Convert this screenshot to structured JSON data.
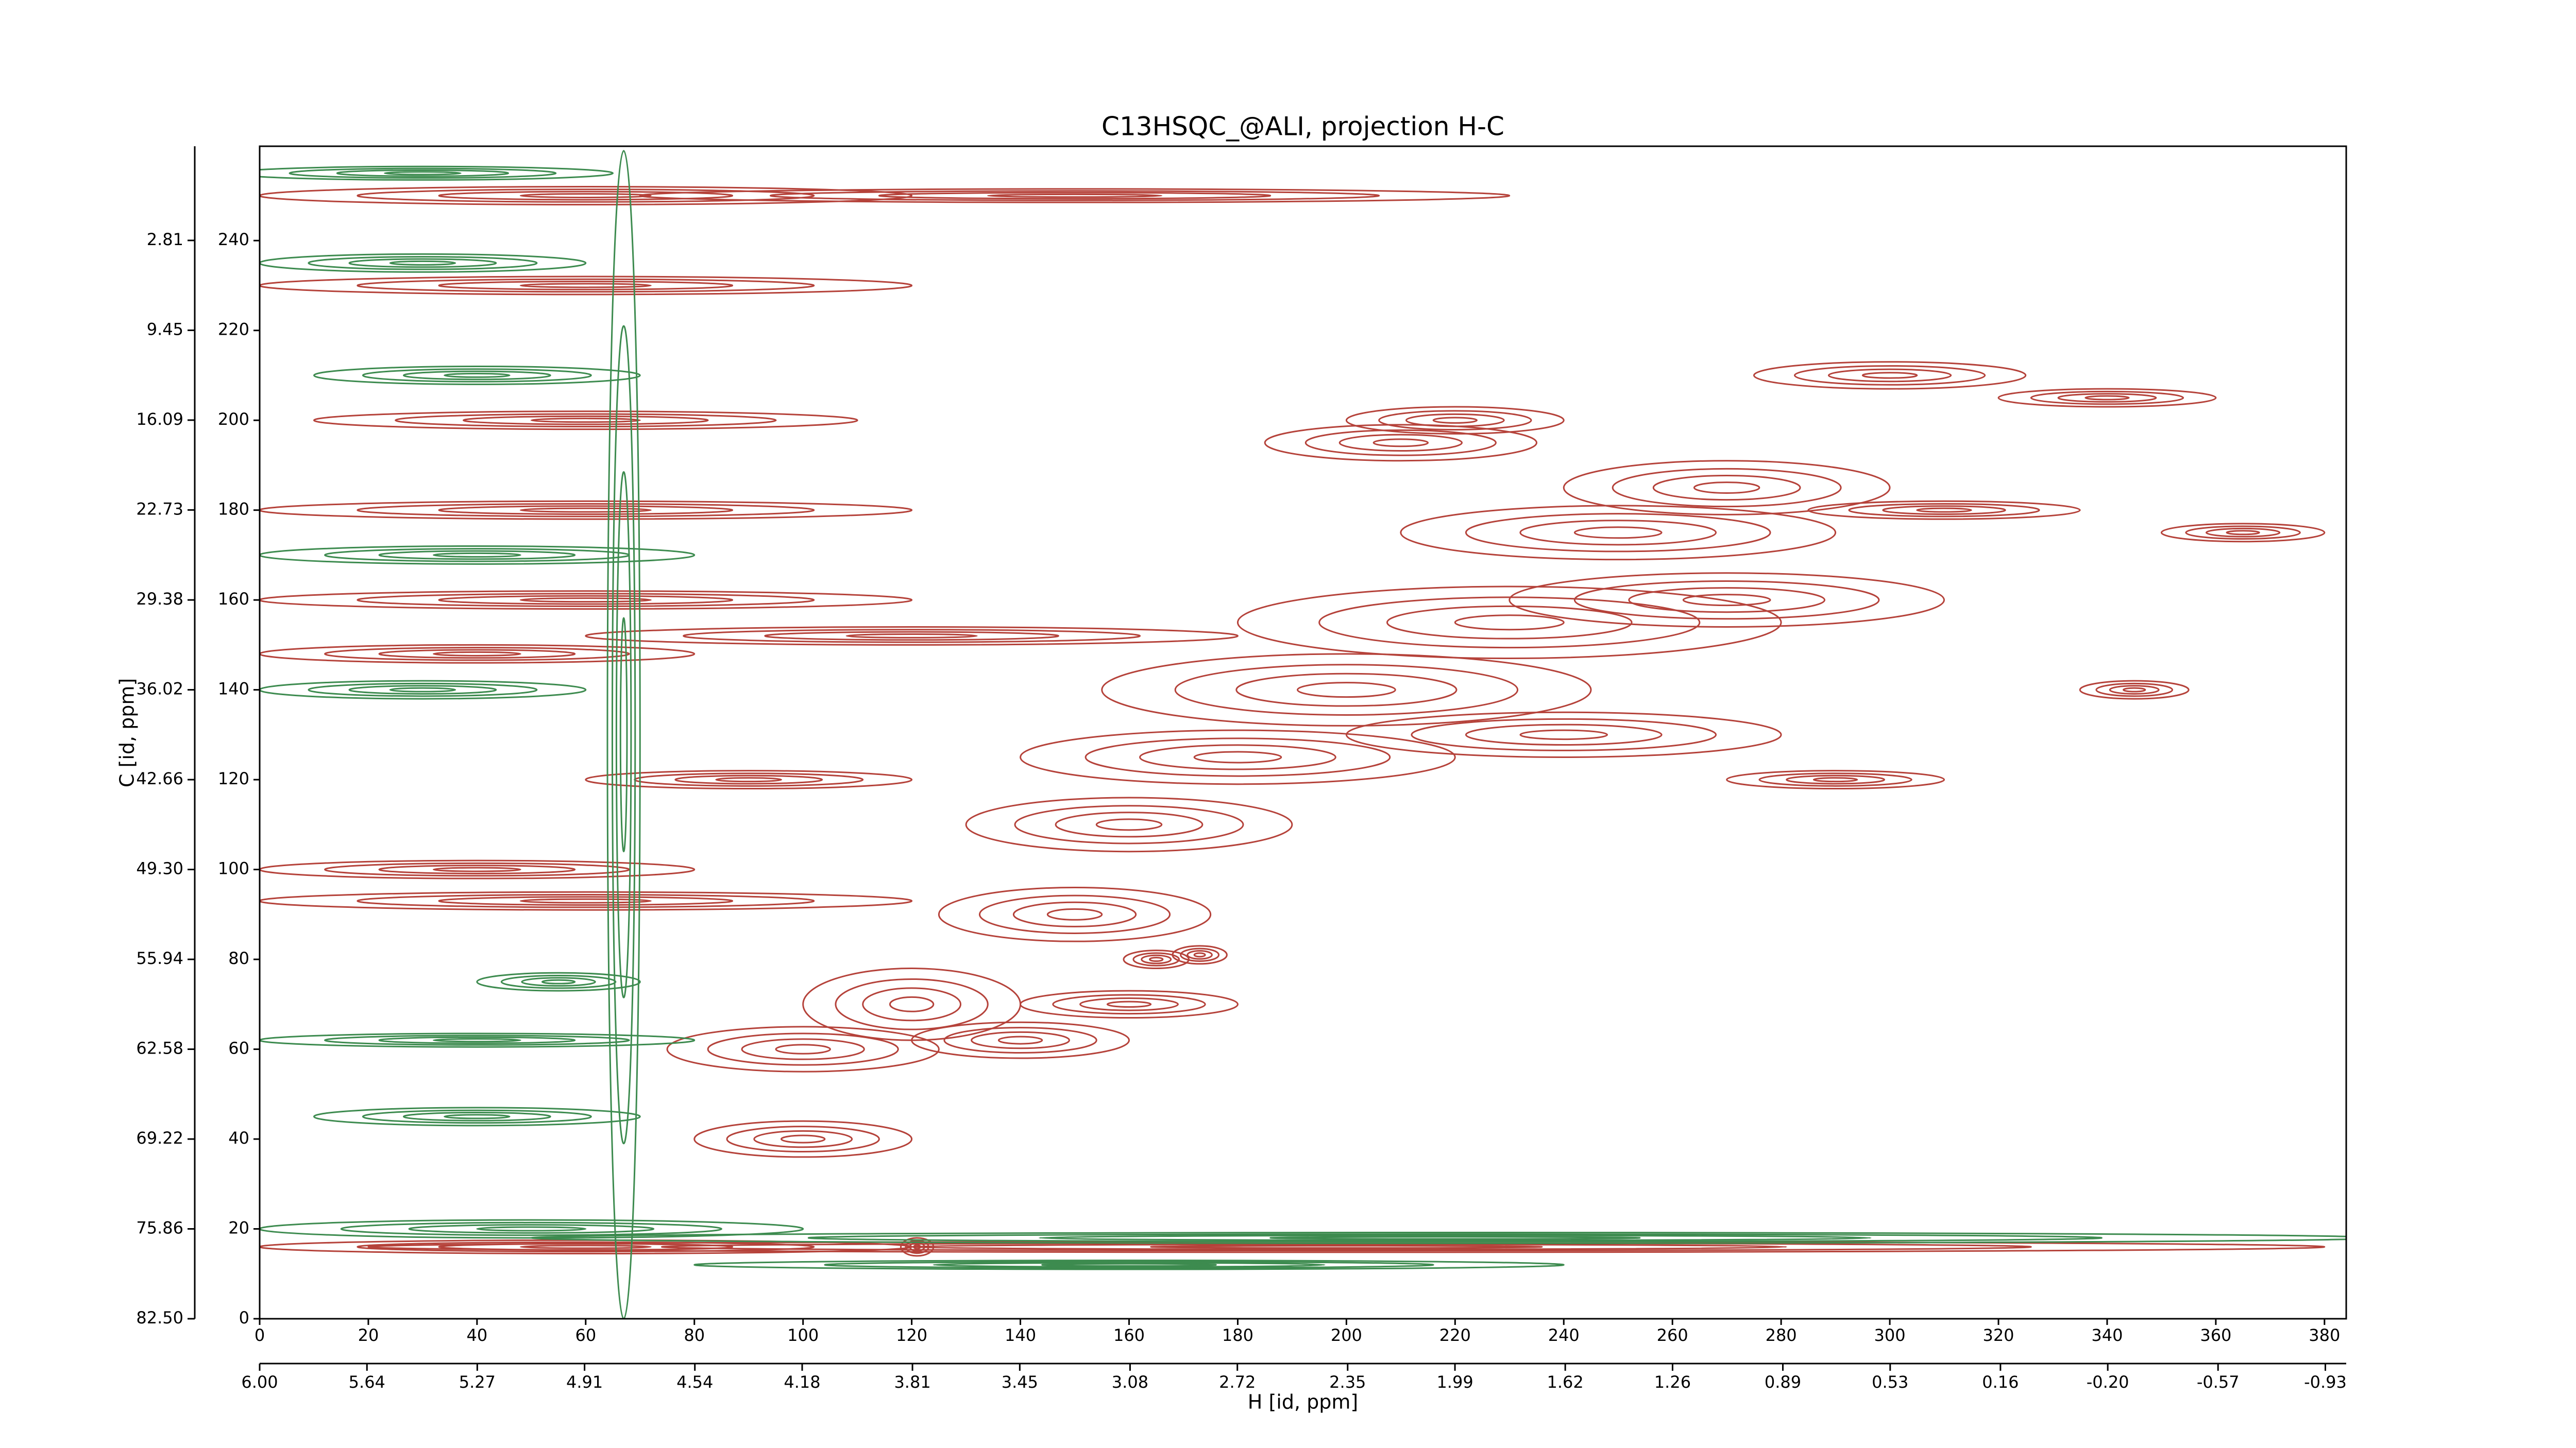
{
  "chart_data": {
    "type": "contour",
    "title": "C13HSQC_@ALI, projection H-C",
    "xlabel": "H [id, ppm]",
    "ylabel": "C [id, ppm]",
    "xlim": [
      0,
      384
    ],
    "ylim": [
      0,
      261
    ],
    "xticks": [
      0,
      20,
      40,
      60,
      80,
      100,
      120,
      140,
      160,
      180,
      200,
      220,
      240,
      260,
      280,
      300,
      320,
      340,
      360,
      380
    ],
    "yticks": [
      0,
      20,
      40,
      60,
      80,
      100,
      120,
      140,
      160,
      180,
      200,
      220,
      240
    ],
    "x2lim": [
      6.0,
      -1.0
    ],
    "x2ticks": [
      {
        "value": 6.0,
        "label": "6.00"
      },
      5.64,
      5.27,
      4.91,
      4.54,
      4.18,
      3.81,
      3.45,
      3.08,
      2.72,
      2.35,
      1.99,
      1.62,
      1.26,
      0.89,
      0.53,
      0.16,
      {
        "value": -0.2,
        "label": "-0.20"
      },
      -0.57,
      -0.93
    ],
    "y2lim": [
      82.5,
      -4.15
    ],
    "y2ticks": [
      {
        "value": 82.5,
        "label": "82.50"
      },
      75.86,
      69.22,
      62.58,
      55.94,
      {
        "value": 49.3,
        "label": "49.30"
      },
      42.66,
      36.02,
      29.38,
      22.73,
      16.09,
      9.45,
      2.81
    ],
    "series": [
      {
        "color": "#b5423a",
        "peaks": [
          [
            60,
            16,
            60,
            1.5
          ],
          [
            200,
            16,
            180,
            1.2
          ],
          [
            60,
            93,
            60,
            2
          ],
          [
            40,
            148,
            40,
            2
          ],
          [
            120,
            152,
            60,
            2
          ],
          [
            60,
            160,
            60,
            2
          ],
          [
            90,
            120,
            30,
            2
          ],
          [
            40,
            100,
            40,
            2
          ],
          [
            60,
            230,
            60,
            2
          ],
          [
            60,
            250,
            60,
            2
          ],
          [
            150,
            250,
            80,
            1.5
          ],
          [
            60,
            200,
            50,
            2
          ],
          [
            60,
            180,
            60,
            2
          ],
          [
            120,
            70,
            20,
            8
          ],
          [
            150,
            90,
            25,
            6
          ],
          [
            160,
            110,
            30,
            6
          ],
          [
            180,
            125,
            40,
            6
          ],
          [
            200,
            140,
            45,
            8
          ],
          [
            230,
            155,
            50,
            8
          ],
          [
            250,
            175,
            40,
            6
          ],
          [
            270,
            185,
            30,
            6
          ],
          [
            300,
            210,
            25,
            3
          ],
          [
            340,
            205,
            20,
            2
          ],
          [
            220,
            200,
            20,
            3
          ],
          [
            210,
            195,
            25,
            4
          ],
          [
            165,
            80,
            6,
            2
          ],
          [
            173,
            81,
            5,
            2
          ],
          [
            121,
            16,
            3,
            2
          ],
          [
            310,
            180,
            25,
            2
          ],
          [
            365,
            175,
            15,
            2
          ],
          [
            345,
            140,
            10,
            2
          ],
          [
            290,
            120,
            20,
            2
          ],
          [
            100,
            60,
            25,
            5
          ],
          [
            140,
            62,
            20,
            4
          ],
          [
            100,
            40,
            20,
            4
          ],
          [
            160,
            70,
            20,
            3
          ],
          [
            240,
            130,
            40,
            5
          ],
          [
            270,
            160,
            40,
            6
          ]
        ]
      },
      {
        "color": "#3d8b4f",
        "peaks": [
          [
            67,
            130,
            3,
            130
          ],
          [
            30,
            255,
            35,
            1.5
          ],
          [
            30,
            235,
            30,
            2
          ],
          [
            40,
            170,
            40,
            2
          ],
          [
            30,
            140,
            30,
            2
          ],
          [
            40,
            62,
            40,
            1.5
          ],
          [
            40,
            45,
            30,
            2
          ],
          [
            50,
            20,
            50,
            2
          ],
          [
            220,
            18,
            170,
            1.2
          ],
          [
            160,
            12,
            80,
            1
          ],
          [
            40,
            210,
            30,
            2
          ],
          [
            55,
            75,
            15,
            2
          ]
        ]
      }
    ]
  }
}
